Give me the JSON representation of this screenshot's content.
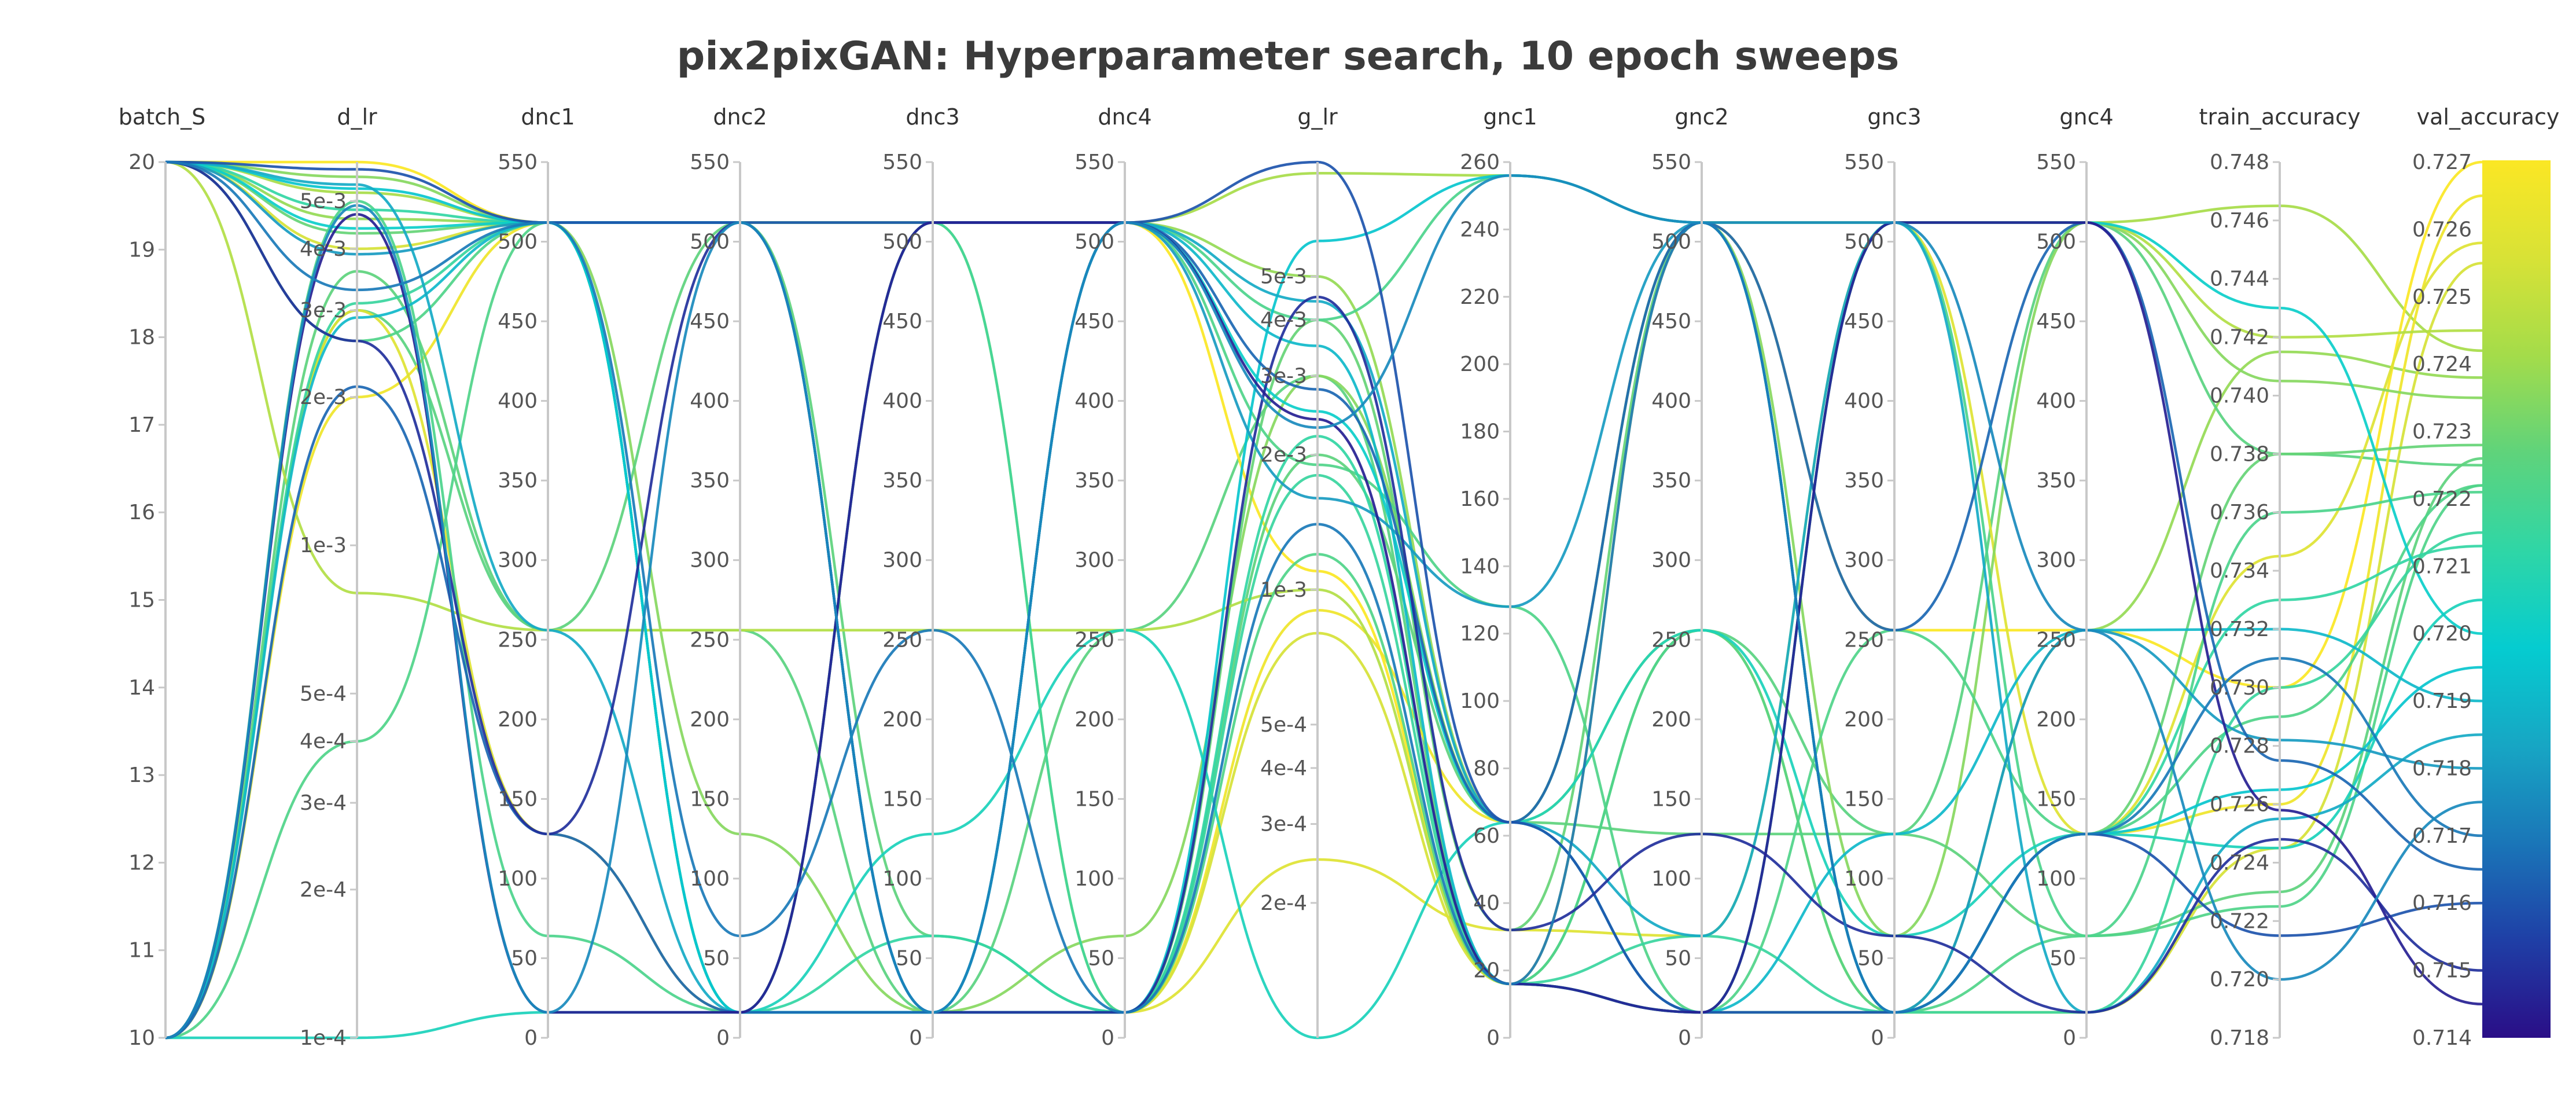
{
  "chart_data": {
    "type": "parallel_coordinates",
    "title": "pix2pixGAN: Hyperparameter search, 10 epoch sweeps",
    "color_by": "val_accuracy",
    "colorscale": [
      "#2a0e87",
      "#1f3fa6",
      "#1a76b8",
      "#17a6c4",
      "#05ccd0",
      "#2fd6a6",
      "#5fd37b",
      "#a4dc4a",
      "#d8e236",
      "#fbe724"
    ],
    "axes": [
      {
        "name": "batch_S",
        "scale": "linear",
        "range": [
          10,
          20
        ],
        "ticks": [
          {
            "v": 10,
            "label": "10"
          },
          {
            "v": 11,
            "label": "11"
          },
          {
            "v": 12,
            "label": "12"
          },
          {
            "v": 13,
            "label": "13"
          },
          {
            "v": 14,
            "label": "14"
          },
          {
            "v": 15,
            "label": "15"
          },
          {
            "v": 16,
            "label": "16"
          },
          {
            "v": 17,
            "label": "17"
          },
          {
            "v": 18,
            "label": "18"
          },
          {
            "v": 19,
            "label": "19"
          },
          {
            "v": 20,
            "label": "20"
          }
        ]
      },
      {
        "name": "d_lr",
        "scale": "log",
        "range": [
          0.0001,
          0.006
        ],
        "ticks": [
          {
            "v": 0.005,
            "label": "5e-3"
          },
          {
            "v": 0.004,
            "label": "4e-3"
          },
          {
            "v": 0.003,
            "label": "3e-3"
          },
          {
            "v": 0.002,
            "label": "2e-3"
          },
          {
            "v": 0.001,
            "label": "1e-3"
          },
          {
            "v": 0.0005,
            "label": "5e-4"
          },
          {
            "v": 0.0004,
            "label": "4e-4"
          },
          {
            "v": 0.0003,
            "label": "3e-4"
          },
          {
            "v": 0.0002,
            "label": "2e-4"
          },
          {
            "v": 0.0001,
            "label": "1e-4"
          }
        ]
      },
      {
        "name": "dnc1",
        "scale": "linear",
        "range": [
          0,
          550
        ],
        "ticks": [
          {
            "v": 0,
            "label": "0"
          },
          {
            "v": 50,
            "label": "50"
          },
          {
            "v": 100,
            "label": "100"
          },
          {
            "v": 150,
            "label": "150"
          },
          {
            "v": 200,
            "label": "200"
          },
          {
            "v": 250,
            "label": "250"
          },
          {
            "v": 300,
            "label": "300"
          },
          {
            "v": 350,
            "label": "350"
          },
          {
            "v": 400,
            "label": "400"
          },
          {
            "v": 450,
            "label": "450"
          },
          {
            "v": 500,
            "label": "500"
          },
          {
            "v": 550,
            "label": "550"
          }
        ]
      },
      {
        "name": "dnc2",
        "scale": "linear",
        "range": [
          0,
          550
        ],
        "ticks": [
          {
            "v": 0,
            "label": "0"
          },
          {
            "v": 50,
            "label": "50"
          },
          {
            "v": 100,
            "label": "100"
          },
          {
            "v": 150,
            "label": "150"
          },
          {
            "v": 200,
            "label": "200"
          },
          {
            "v": 250,
            "label": "250"
          },
          {
            "v": 300,
            "label": "300"
          },
          {
            "v": 350,
            "label": "350"
          },
          {
            "v": 400,
            "label": "400"
          },
          {
            "v": 450,
            "label": "450"
          },
          {
            "v": 500,
            "label": "500"
          },
          {
            "v": 550,
            "label": "550"
          }
        ]
      },
      {
        "name": "dnc3",
        "scale": "linear",
        "range": [
          0,
          550
        ],
        "ticks": [
          {
            "v": 0,
            "label": "0"
          },
          {
            "v": 50,
            "label": "50"
          },
          {
            "v": 100,
            "label": "100"
          },
          {
            "v": 150,
            "label": "150"
          },
          {
            "v": 200,
            "label": "200"
          },
          {
            "v": 250,
            "label": "250"
          },
          {
            "v": 300,
            "label": "300"
          },
          {
            "v": 350,
            "label": "350"
          },
          {
            "v": 400,
            "label": "400"
          },
          {
            "v": 450,
            "label": "450"
          },
          {
            "v": 500,
            "label": "500"
          },
          {
            "v": 550,
            "label": "550"
          }
        ]
      },
      {
        "name": "dnc4",
        "scale": "linear",
        "range": [
          0,
          550
        ],
        "ticks": [
          {
            "v": 0,
            "label": "0"
          },
          {
            "v": 50,
            "label": "50"
          },
          {
            "v": 100,
            "label": "100"
          },
          {
            "v": 150,
            "label": "150"
          },
          {
            "v": 200,
            "label": "200"
          },
          {
            "v": 250,
            "label": "250"
          },
          {
            "v": 300,
            "label": "300"
          },
          {
            "v": 350,
            "label": "350"
          },
          {
            "v": 400,
            "label": "400"
          },
          {
            "v": 450,
            "label": "450"
          },
          {
            "v": 500,
            "label": "500"
          },
          {
            "v": 550,
            "label": "550"
          }
        ]
      },
      {
        "name": "g_lr",
        "scale": "log",
        "range": [
          0.0001,
          0.009
        ],
        "ticks": [
          {
            "v": 0.005,
            "label": "5e-3"
          },
          {
            "v": 0.004,
            "label": "4e-3"
          },
          {
            "v": 0.003,
            "label": "3e-3"
          },
          {
            "v": 0.002,
            "label": "2e-3"
          },
          {
            "v": 0.001,
            "label": "1e-3"
          },
          {
            "v": 0.0005,
            "label": "5e-4"
          },
          {
            "v": 0.0004,
            "label": "4e-4"
          },
          {
            "v": 0.0003,
            "label": "3e-4"
          },
          {
            "v": 0.0002,
            "label": "2e-4"
          }
        ]
      },
      {
        "name": "gnc1",
        "scale": "linear",
        "range": [
          0,
          260
        ],
        "ticks": [
          {
            "v": 0,
            "label": "0"
          },
          {
            "v": 20,
            "label": "20"
          },
          {
            "v": 40,
            "label": "40"
          },
          {
            "v": 60,
            "label": "60"
          },
          {
            "v": 80,
            "label": "80"
          },
          {
            "v": 100,
            "label": "100"
          },
          {
            "v": 120,
            "label": "120"
          },
          {
            "v": 140,
            "label": "140"
          },
          {
            "v": 160,
            "label": "160"
          },
          {
            "v": 180,
            "label": "180"
          },
          {
            "v": 200,
            "label": "200"
          },
          {
            "v": 220,
            "label": "220"
          },
          {
            "v": 240,
            "label": "240"
          },
          {
            "v": 260,
            "label": "260"
          }
        ]
      },
      {
        "name": "gnc2",
        "scale": "linear",
        "range": [
          0,
          550
        ],
        "ticks": [
          {
            "v": 0,
            "label": "0"
          },
          {
            "v": 50,
            "label": "50"
          },
          {
            "v": 100,
            "label": "100"
          },
          {
            "v": 150,
            "label": "150"
          },
          {
            "v": 200,
            "label": "200"
          },
          {
            "v": 250,
            "label": "250"
          },
          {
            "v": 300,
            "label": "300"
          },
          {
            "v": 350,
            "label": "350"
          },
          {
            "v": 400,
            "label": "400"
          },
          {
            "v": 450,
            "label": "450"
          },
          {
            "v": 500,
            "label": "500"
          },
          {
            "v": 550,
            "label": "550"
          }
        ]
      },
      {
        "name": "gnc3",
        "scale": "linear",
        "range": [
          0,
          550
        ],
        "ticks": [
          {
            "v": 0,
            "label": "0"
          },
          {
            "v": 50,
            "label": "50"
          },
          {
            "v": 100,
            "label": "100"
          },
          {
            "v": 150,
            "label": "150"
          },
          {
            "v": 200,
            "label": "200"
          },
          {
            "v": 250,
            "label": "250"
          },
          {
            "v": 300,
            "label": "300"
          },
          {
            "v": 350,
            "label": "350"
          },
          {
            "v": 400,
            "label": "400"
          },
          {
            "v": 450,
            "label": "450"
          },
          {
            "v": 500,
            "label": "500"
          },
          {
            "v": 550,
            "label": "550"
          }
        ]
      },
      {
        "name": "gnc4",
        "scale": "linear",
        "range": [
          0,
          550
        ],
        "ticks": [
          {
            "v": 0,
            "label": "0"
          },
          {
            "v": 50,
            "label": "50"
          },
          {
            "v": 100,
            "label": "100"
          },
          {
            "v": 150,
            "label": "150"
          },
          {
            "v": 200,
            "label": "200"
          },
          {
            "v": 250,
            "label": "250"
          },
          {
            "v": 300,
            "label": "300"
          },
          {
            "v": 350,
            "label": "350"
          },
          {
            "v": 400,
            "label": "400"
          },
          {
            "v": 450,
            "label": "450"
          },
          {
            "v": 500,
            "label": "500"
          },
          {
            "v": 550,
            "label": "550"
          }
        ]
      },
      {
        "name": "train_accuracy",
        "scale": "linear",
        "range": [
          0.718,
          0.748
        ],
        "ticks": [
          {
            "v": 0.718,
            "label": "0.718"
          },
          {
            "v": 0.72,
            "label": "0.720"
          },
          {
            "v": 0.722,
            "label": "0.722"
          },
          {
            "v": 0.724,
            "label": "0.724"
          },
          {
            "v": 0.726,
            "label": "0.726"
          },
          {
            "v": 0.728,
            "label": "0.728"
          },
          {
            "v": 0.73,
            "label": "0.730"
          },
          {
            "v": 0.732,
            "label": "0.732"
          },
          {
            "v": 0.734,
            "label": "0.734"
          },
          {
            "v": 0.736,
            "label": "0.736"
          },
          {
            "v": 0.738,
            "label": "0.738"
          },
          {
            "v": 0.74,
            "label": "0.740"
          },
          {
            "v": 0.742,
            "label": "0.742"
          },
          {
            "v": 0.744,
            "label": "0.744"
          },
          {
            "v": 0.746,
            "label": "0.746"
          },
          {
            "v": 0.748,
            "label": "0.748"
          }
        ]
      },
      {
        "name": "val_accuracy",
        "scale": "linear",
        "range": [
          0.714,
          0.727
        ],
        "ticks": [
          {
            "v": 0.714,
            "label": "0.714"
          },
          {
            "v": 0.715,
            "label": "0.715"
          },
          {
            "v": 0.716,
            "label": "0.716"
          },
          {
            "v": 0.717,
            "label": "0.717"
          },
          {
            "v": 0.718,
            "label": "0.718"
          },
          {
            "v": 0.719,
            "label": "0.719"
          },
          {
            "v": 0.72,
            "label": "0.720"
          },
          {
            "v": 0.721,
            "label": "0.721"
          },
          {
            "v": 0.722,
            "label": "0.722"
          },
          {
            "v": 0.723,
            "label": "0.723"
          },
          {
            "v": 0.724,
            "label": "0.724"
          },
          {
            "v": 0.725,
            "label": "0.725"
          },
          {
            "v": 0.726,
            "label": "0.726"
          },
          {
            "v": 0.727,
            "label": "0.727"
          }
        ]
      }
    ],
    "runs": [
      [
        20,
        0.0052,
        512,
        512,
        512,
        512,
        0.0085,
        256,
        512,
        512,
        512,
        0.7465,
        0.7242
      ],
      [
        20,
        0.0046,
        512,
        16,
        16,
        512,
        0.005,
        64,
        512,
        16,
        256,
        0.7415,
        0.7238
      ],
      [
        10,
        0.003,
        256,
        256,
        16,
        256,
        0.003,
        16,
        256,
        128,
        512,
        0.738,
        0.7225
      ],
      [
        20,
        0.006,
        512,
        512,
        512,
        512,
        0.0011,
        16,
        512,
        256,
        256,
        0.73,
        0.727
      ],
      [
        10,
        0.002,
        512,
        16,
        512,
        16,
        0.0009,
        64,
        256,
        16,
        128,
        0.726,
        0.7265
      ],
      [
        20,
        0.004,
        512,
        16,
        16,
        16,
        0.0008,
        16,
        16,
        16,
        16,
        0.7245,
        0.7255
      ],
      [
        10,
        0.003,
        128,
        16,
        16,
        16,
        0.00025,
        32,
        64,
        512,
        128,
        0.7345,
        0.7258
      ],
      [
        20,
        0.0056,
        512,
        128,
        16,
        64,
        0.003,
        64,
        512,
        64,
        512,
        0.7405,
        0.7235
      ],
      [
        20,
        0.0043,
        512,
        16,
        16,
        16,
        0.004,
        32,
        512,
        16,
        128,
        0.738,
        0.7228
      ],
      [
        10,
        0.0036,
        256,
        512,
        64,
        16,
        0.002,
        64,
        128,
        128,
        64,
        0.723,
        0.7226
      ],
      [
        20,
        0.0008,
        256,
        256,
        256,
        256,
        0.001,
        16,
        16,
        512,
        512,
        0.742,
        0.7245
      ],
      [
        10,
        0.0004,
        512,
        512,
        16,
        16,
        0.0012,
        16,
        256,
        16,
        64,
        0.7225,
        0.7222
      ],
      [
        20,
        0.0026,
        512,
        16,
        512,
        512,
        0.0019,
        128,
        16,
        256,
        128,
        0.729,
        0.7222
      ],
      [
        10,
        0.005,
        64,
        16,
        16,
        512,
        0.004,
        256,
        512,
        512,
        64,
        0.736,
        0.7221
      ],
      [
        20,
        0.0048,
        512,
        16,
        64,
        16,
        0.0022,
        16,
        16,
        16,
        128,
        0.733,
        0.7213
      ],
      [
        10,
        0.0001,
        16,
        16,
        128,
        256,
        0.0001,
        64,
        256,
        64,
        128,
        0.7245,
        0.7205
      ],
      [
        20,
        0.0044,
        512,
        16,
        16,
        512,
        0.0025,
        64,
        16,
        512,
        512,
        0.743,
        0.72
      ],
      [
        10,
        0.0031,
        512,
        512,
        512,
        16,
        0.0018,
        16,
        64,
        16,
        16,
        0.73,
        0.7215
      ],
      [
        20,
        0.0053,
        512,
        16,
        16,
        16,
        0.006,
        256,
        512,
        16,
        128,
        0.7265,
        0.7195
      ],
      [
        10,
        0.0029,
        512,
        512,
        16,
        512,
        0.0035,
        16,
        16,
        128,
        256,
        0.732,
        0.719
      ],
      [
        20,
        0.0054,
        256,
        16,
        512,
        512,
        0.0044,
        64,
        64,
        512,
        16,
        0.7255,
        0.7185
      ],
      [
        20,
        0.0039,
        512,
        512,
        16,
        512,
        0.0016,
        128,
        512,
        16,
        256,
        0.7282,
        0.718
      ],
      [
        10,
        0.0021,
        128,
        16,
        16,
        512,
        0.0028,
        64,
        512,
        256,
        512,
        0.7275,
        0.7165
      ],
      [
        20,
        0.0058,
        512,
        512,
        512,
        512,
        0.0092,
        64,
        16,
        16,
        128,
        0.7215,
        0.716
      ],
      [
        20,
        0.0026,
        128,
        512,
        16,
        16,
        0.0045,
        32,
        128,
        64,
        16,
        0.7248,
        0.715
      ],
      [
        10,
        0.0047,
        16,
        16,
        512,
        512,
        0.0024,
        16,
        16,
        512,
        512,
        0.7258,
        0.7145
      ],
      [
        20,
        0.0033,
        512,
        64,
        256,
        16,
        0.0014,
        16,
        512,
        16,
        128,
        0.731,
        0.717
      ],
      [
        10,
        0.0049,
        16,
        512,
        16,
        512,
        0.0023,
        256,
        512,
        512,
        256,
        0.72,
        0.7175
      ]
    ]
  },
  "colorbar": {
    "max_label": "0.727",
    "min_label": "0.714"
  }
}
